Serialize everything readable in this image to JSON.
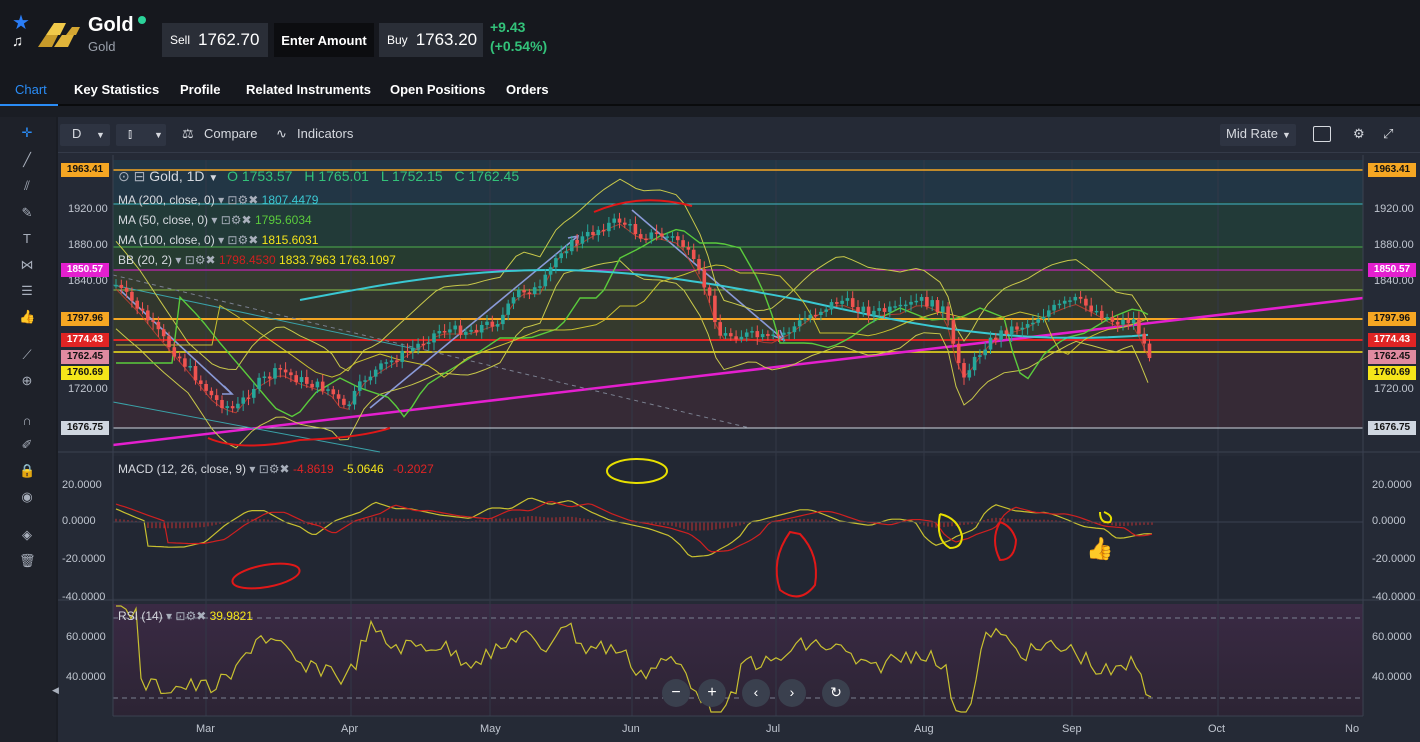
{
  "header": {
    "instrument_name": "Gold",
    "instrument_sub": "Gold",
    "sell_label": "Sell",
    "sell_price": "1762.70",
    "enter_amount": "Enter Amount",
    "buy_label": "Buy",
    "buy_price": "1763.20",
    "change_abs": "+9.43",
    "change_pct": "(+0.54%)"
  },
  "tabs": [
    {
      "label": "Chart",
      "active": true
    },
    {
      "label": "Key Statistics"
    },
    {
      "label": "Profile"
    },
    {
      "label": "Related Instruments"
    },
    {
      "label": "Open Positions"
    },
    {
      "label": "Orders"
    }
  ],
  "toolbar": {
    "interval": "D",
    "compare": "Compare",
    "indicators": "Indicators",
    "rate": "Mid Rate"
  },
  "legend": {
    "symbol": "Gold, 1D",
    "open": "O 1753.57",
    "high": "H 1765.01",
    "low": "L 1752.15",
    "close": "C 1762.45",
    "ma200_label": "MA (200, close, 0)",
    "ma200_val": "1807.4479",
    "ma50_label": "MA (50, close, 0)",
    "ma50_val": "1795.6034",
    "ma100_label": "MA (100, close, 0)",
    "ma100_val": "1815.6031",
    "bb_label": "BB (20, 2)",
    "bb_mid": "1798.4530",
    "bb_up": "1833.7963",
    "bb_low": "1763.1097",
    "macd_label": "MACD (12, 26, close, 9)",
    "macd_v1": "-4.8619",
    "macd_v2": "-5.0646",
    "macd_v3": "-0.2027",
    "rsi_label": "RSI (14)",
    "rsi_val": "39.9821"
  },
  "price_axis": {
    "ticks": [
      "1920.00",
      "1880.00",
      "1840.00",
      "1720.00"
    ],
    "badges": [
      {
        "text": "1963.41",
        "color": "#f5a623"
      },
      {
        "text": "1850.57",
        "color": "#e41fcf"
      },
      {
        "text": "1797.96",
        "color": "#f5a623"
      },
      {
        "text": "1774.43",
        "color": "#e02424"
      },
      {
        "text": "1762.45",
        "color": "#e08aa0"
      },
      {
        "text": "1760.69",
        "color": "#f5e51a"
      },
      {
        "text": "1676.75",
        "color": "#cfd6e0"
      }
    ]
  },
  "macd_axis": {
    "ticks": [
      "20.0000",
      "0.0000",
      "-20.0000",
      "-40.0000"
    ]
  },
  "rsi_axis": {
    "ticks": [
      "60.0000",
      "40.0000"
    ]
  },
  "time_axis": {
    "labels": [
      "Mar",
      "Apr",
      "May",
      "Jun",
      "Jul",
      "Aug",
      "Sep",
      "Oct",
      "No"
    ]
  },
  "colors": {
    "up": "#26a69a",
    "down": "#ef5350",
    "accent": "#2a8cf6"
  },
  "icons": [
    "star-icon",
    "bell-icon",
    "gold-bars-logo",
    "crosshair-icon",
    "gear-icon",
    "fullscreen-icon",
    "zoom-out-icon",
    "zoom-in-icon",
    "prev-icon",
    "next-icon",
    "reset-icon"
  ]
}
